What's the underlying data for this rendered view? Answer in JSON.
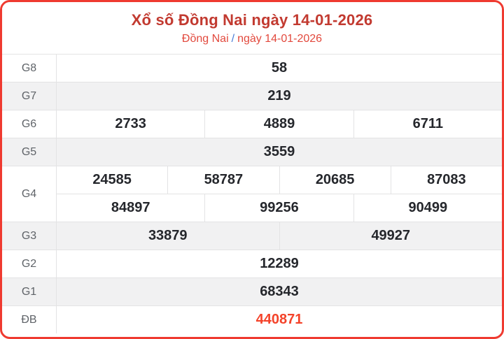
{
  "header": {
    "title": "Xổ số Đồng Nai ngày 14-01-2026",
    "subtitle": {
      "province": "Đồng Nai",
      "separator": "/",
      "date": "ngày 14-01-2026"
    }
  },
  "colors": {
    "card_border": "#ef3a30",
    "title_text": "#c23a30",
    "subtitle_text": "#e2493d",
    "separator_text": "#4a7dd6",
    "number_text": "#25272c",
    "label_text": "#5f6368",
    "special_number_text": "#f4432a",
    "stripe_background": "#f1f1f2",
    "grid_line": "#e3e3e4"
  },
  "table": {
    "rows": [
      {
        "label": "G8",
        "lines": [
          [
            "58"
          ]
        ]
      },
      {
        "label": "G7",
        "lines": [
          [
            "219"
          ]
        ]
      },
      {
        "label": "G6",
        "lines": [
          [
            "2733",
            "4889",
            "6711"
          ]
        ]
      },
      {
        "label": "G5",
        "lines": [
          [
            "3559"
          ]
        ]
      },
      {
        "label": "G4",
        "lines": [
          [
            "24585",
            "58787",
            "20685",
            "87083"
          ],
          [
            "84897",
            "99256",
            "90499"
          ]
        ]
      },
      {
        "label": "G3",
        "lines": [
          [
            "33879",
            "49927"
          ]
        ]
      },
      {
        "label": "G2",
        "lines": [
          [
            "12289"
          ]
        ]
      },
      {
        "label": "G1",
        "lines": [
          [
            "68343"
          ]
        ]
      },
      {
        "label": "ĐB",
        "lines": [
          [
            "440871"
          ]
        ]
      }
    ]
  }
}
